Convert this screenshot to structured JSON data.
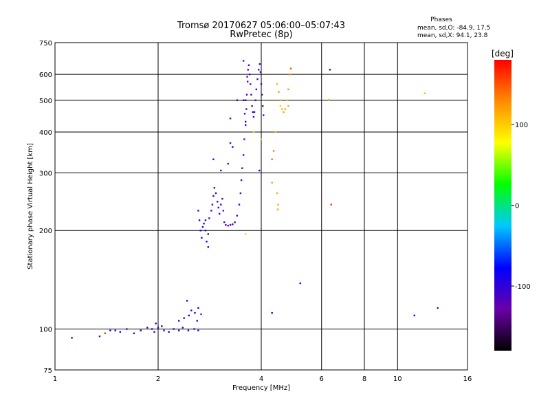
{
  "chart_data": {
    "type": "scatter",
    "title": "Tromsø 20170627 05:06:00–05:07:43",
    "subtitle": "RwPretec (8p)",
    "xlabel": "Frequency [MHz]",
    "ylabel": "Stationary phase Virtual Height [km]",
    "xscale": "log",
    "yscale": "log",
    "xlim": [
      1,
      16
    ],
    "ylim": [
      75,
      750
    ],
    "xticks": [
      {
        "v": 1,
        "label": "1"
      },
      {
        "v": 2,
        "label": "2"
      },
      {
        "v": 4,
        "label": "4"
      },
      {
        "v": 6,
        "label": "6"
      },
      {
        "v": 8,
        "label": "8"
      },
      {
        "v": 10,
        "label": "10"
      },
      {
        "v": 16,
        "label": "16"
      }
    ],
    "yticks": [
      {
        "v": 75,
        "label": "75"
      },
      {
        "v": 100,
        "label": "100"
      },
      {
        "v": 200,
        "label": "200"
      },
      {
        "v": 300,
        "label": "300"
      },
      {
        "v": 400,
        "label": "400"
      },
      {
        "v": 500,
        "label": "500"
      },
      {
        "v": 600,
        "label": "600"
      },
      {
        "v": 750,
        "label": "750"
      }
    ],
    "grid": true,
    "phase_info": {
      "title": "Phases",
      "line_o": "mean, sd,O: -84.9, 17.5",
      "line_x": "mean, sd,X:  94.1, 23.8"
    },
    "colorbar": {
      "label": "[deg]",
      "range": [
        -180,
        180
      ],
      "ticks": [
        {
          "v": 100,
          "label": "100"
        },
        {
          "v": 0,
          "label": "0"
        },
        {
          "v": -100,
          "label": "-100"
        }
      ],
      "colors": [
        "#000000",
        "#6a00a8",
        "#0000ff",
        "#00c8ff",
        "#00ff00",
        "#ffff00",
        "#ff8c00",
        "#ff0000"
      ]
    },
    "series": [
      {
        "points": [
          [
            1.12,
            94,
            -100
          ],
          [
            1.35,
            95,
            -110
          ],
          [
            1.45,
            99,
            -105
          ],
          [
            1.5,
            99,
            -95
          ],
          [
            1.55,
            98,
            -100
          ],
          [
            1.62,
            100,
            -110
          ],
          [
            1.7,
            97,
            -105
          ],
          [
            1.78,
            99,
            -100
          ],
          [
            1.86,
            101,
            -95
          ],
          [
            1.92,
            100,
            -105
          ],
          [
            2.0,
            101,
            -100
          ],
          [
            2.08,
            99,
            -110
          ],
          [
            2.15,
            98,
            -95
          ],
          [
            2.22,
            100,
            -100
          ],
          [
            2.3,
            99,
            -105
          ],
          [
            2.36,
            101,
            -100
          ],
          [
            2.45,
            99,
            -95
          ],
          [
            2.55,
            100,
            -100
          ],
          [
            2.62,
            99,
            -110
          ],
          [
            2.3,
            106,
            -95
          ],
          [
            2.38,
            108,
            -100
          ],
          [
            2.46,
            110,
            -90
          ],
          [
            2.5,
            114,
            -105
          ],
          [
            2.56,
            112,
            -95
          ],
          [
            2.62,
            116,
            -80
          ],
          [
            2.6,
            106,
            -100
          ],
          [
            2.43,
            122,
            -90
          ],
          [
            2.67,
            111,
            -60
          ],
          [
            1.97,
            104,
            -100
          ],
          [
            2.05,
            102,
            -90
          ],
          [
            1.95,
            98,
            -105
          ],
          [
            2.62,
            230,
            -95
          ],
          [
            2.64,
            215,
            -90
          ],
          [
            2.66,
            200,
            -80
          ],
          [
            2.68,
            190,
            -85
          ],
          [
            2.7,
            205,
            -100
          ],
          [
            2.72,
            210,
            -95
          ],
          [
            2.75,
            200,
            -90
          ],
          [
            2.77,
            185,
            -85
          ],
          [
            2.8,
            195,
            -95
          ],
          [
            2.82,
            218,
            -100
          ],
          [
            2.86,
            230,
            -105
          ],
          [
            2.88,
            240,
            -100
          ],
          [
            2.9,
            255,
            -110
          ],
          [
            2.92,
            270,
            -115
          ],
          [
            2.95,
            260,
            -105
          ],
          [
            2.98,
            245,
            -100
          ],
          [
            3.0,
            235,
            -110
          ],
          [
            3.02,
            225,
            -105
          ],
          [
            3.05,
            240,
            -115
          ],
          [
            3.08,
            250,
            -110
          ],
          [
            3.1,
            230,
            -120
          ],
          [
            3.12,
            212,
            -115
          ],
          [
            3.15,
            208,
            -120
          ],
          [
            3.2,
            207,
            -115
          ],
          [
            3.25,
            208,
            -120
          ],
          [
            3.3,
            209,
            -115
          ],
          [
            3.35,
            212,
            -120
          ],
          [
            3.4,
            222,
            -115
          ],
          [
            3.45,
            240,
            -110
          ],
          [
            3.48,
            260,
            -115
          ],
          [
            3.5,
            285,
            -110
          ],
          [
            3.52,
            310,
            -105
          ],
          [
            3.55,
            340,
            -110
          ],
          [
            3.57,
            380,
            -115
          ],
          [
            3.6,
            420,
            -110
          ],
          [
            3.62,
            470,
            -115
          ],
          [
            3.63,
            520,
            -110
          ],
          [
            3.65,
            570,
            -120
          ],
          [
            3.66,
            620,
            -115
          ],
          [
            3.68,
            640,
            -110
          ],
          [
            3.7,
            600,
            -105
          ],
          [
            3.72,
            560,
            -115
          ],
          [
            3.74,
            520,
            -110
          ],
          [
            3.76,
            480,
            -115
          ],
          [
            3.78,
            460,
            -110
          ],
          [
            3.8,
            445,
            -100
          ],
          [
            3.82,
            460,
            -110
          ],
          [
            3.85,
            500,
            -105
          ],
          [
            3.87,
            540,
            -115
          ],
          [
            3.9,
            580,
            -110
          ],
          [
            3.93,
            620,
            -105
          ],
          [
            3.96,
            645,
            -110
          ],
          [
            3.98,
            610,
            -115
          ],
          [
            4.0,
            560,
            -110
          ],
          [
            4.02,
            520,
            -115
          ],
          [
            4.04,
            480,
            -110
          ],
          [
            4.06,
            450,
            -105
          ],
          [
            3.58,
            455,
            -100
          ],
          [
            3.6,
            500,
            -95
          ],
          [
            3.64,
            590,
            -110
          ],
          [
            3.6,
            430,
            -90
          ],
          [
            3.55,
            500,
            -95
          ],
          [
            3.4,
            500,
            -105
          ],
          [
            3.55,
            660,
            -115
          ],
          [
            3.25,
            440,
            -110
          ],
          [
            3.25,
            370,
            -115
          ],
          [
            3.3,
            360,
            -110
          ],
          [
            3.2,
            320,
            -120
          ],
          [
            2.9,
            330,
            -100
          ],
          [
            3.05,
            305,
            -115
          ],
          [
            2.75,
            215,
            -80
          ],
          [
            2.8,
            178,
            -90
          ],
          [
            3.95,
            305,
            -90
          ],
          [
            4.3,
            112,
            -90
          ],
          [
            4.45,
            560,
            110
          ],
          [
            4.5,
            530,
            120
          ],
          [
            4.55,
            500,
            115
          ],
          [
            4.6,
            470,
            110
          ],
          [
            4.65,
            460,
            120
          ],
          [
            4.7,
            470,
            115
          ],
          [
            4.75,
            500,
            110
          ],
          [
            4.8,
            540,
            125
          ],
          [
            4.85,
            600,
            130
          ],
          [
            4.88,
            625,
            150
          ],
          [
            4.55,
            480,
            100
          ],
          [
            4.4,
            400,
            110
          ],
          [
            4.35,
            350,
            135
          ],
          [
            4.3,
            330,
            140
          ],
          [
            4.45,
            260,
            115
          ],
          [
            4.3,
            280,
            120
          ],
          [
            4.48,
            240,
            115
          ],
          [
            4.47,
            232,
            120
          ],
          [
            3.8,
            400,
            100
          ],
          [
            4.0,
            380,
            95
          ],
          [
            3.6,
            195,
            100
          ],
          [
            4.8,
            480,
            115
          ],
          [
            6.35,
            620,
            -100
          ],
          [
            6.3,
            502,
            110
          ],
          [
            6.4,
            240,
            160
          ],
          [
            12.0,
            525,
            110
          ],
          [
            5.2,
            138,
            -80
          ],
          [
            11.2,
            110,
            -90
          ],
          [
            13.1,
            116,
            -120
          ],
          [
            1.4,
            97,
            160
          ]
        ]
      }
    ]
  }
}
